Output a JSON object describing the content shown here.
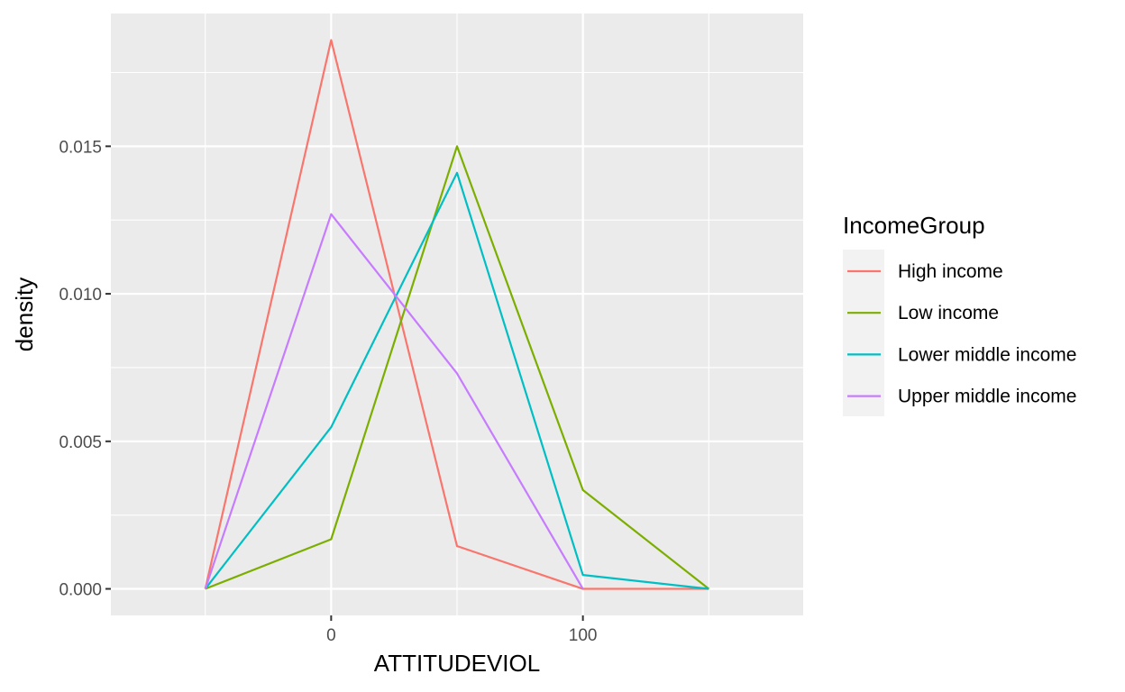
{
  "chart_data": {
    "type": "line",
    "xlabel": "ATTITUDEVIOL",
    "ylabel": "density",
    "xlim": [
      -87.5,
      187.5
    ],
    "ylim": [
      -0.0009,
      0.0195
    ],
    "x_ticks": [
      0,
      100
    ],
    "x_tick_labels": [
      "0",
      "100"
    ],
    "x_minor_ticks": [
      -50,
      50,
      150
    ],
    "y_ticks": [
      0.0,
      0.005,
      0.01,
      0.015
    ],
    "y_tick_labels": [
      "0.000",
      "0.005",
      "0.010",
      "0.015"
    ],
    "y_minor_ticks": [
      0.0025,
      0.0075,
      0.0125,
      0.0175
    ],
    "grid": true,
    "legend_title": "IncomeGroup",
    "legend_position": "right",
    "x": [
      -50,
      0,
      50,
      100,
      150
    ],
    "series": [
      {
        "name": "High income",
        "color": "#F8766D",
        "x": [
          -50,
          0,
          50,
          100,
          150
        ],
        "values": [
          0.0,
          0.0186,
          0.00145,
          0.0,
          0.0
        ]
      },
      {
        "name": "Low income",
        "color": "#7CAE00",
        "x": [
          -50,
          0,
          50,
          100,
          150
        ],
        "values": [
          0.0,
          0.00168,
          0.015,
          0.00335,
          0.0
        ]
      },
      {
        "name": "Lower middle income",
        "color": "#00BFC4",
        "x": [
          -50,
          0,
          50,
          100,
          150
        ],
        "values": [
          0.0,
          0.00548,
          0.0141,
          0.00047,
          0.0
        ]
      },
      {
        "name": "Upper middle income",
        "color": "#C77CFF",
        "x": [
          -50,
          0,
          50,
          100
        ],
        "values": [
          0.0,
          0.0127,
          0.0073,
          0.0
        ]
      }
    ]
  }
}
